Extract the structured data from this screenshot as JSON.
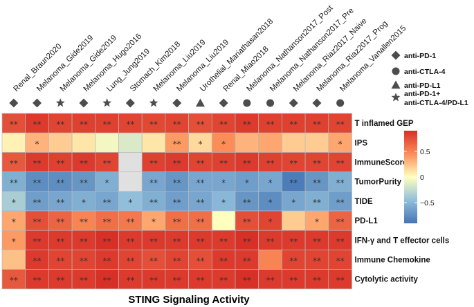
{
  "chart_data": {
    "type": "heatmap",
    "title": "STING Signaling Activity",
    "xlabel": "STING Signaling Activity",
    "columns": [
      "Renal_Braun2020",
      "Melanoma_Gide2019",
      "Melanoma_Gide2019",
      "Melanoma_Hugo2016",
      "Lung_Jung2019",
      "Stomach_Kim2018",
      "Melanoma_Liu2019",
      "Melanoma_Liu2019",
      "Urothelial_Mariathasan2018",
      "Renal_Miao2018",
      "Melanoma_Nathanson2017_Post",
      "Melanoma_Nathanson2017_Pre",
      "Melanoma_Riaz2017_Naive",
      "Melanoma_Riaz2017_Prog",
      "Melanoma_Vanallen2015"
    ],
    "column_treatment": [
      "diamond",
      "diamond",
      "star",
      "diamond",
      "star",
      "diamond",
      "star",
      "diamond",
      "triangle",
      "diamond",
      "circle",
      "circle",
      "diamond",
      "diamond",
      "circle"
    ],
    "rows": [
      "T inflamed GEP",
      "IPS",
      "ImmuneScore",
      "TumorPurity",
      "TIDE",
      "PD-L1",
      "IFN-γ and T effector cells",
      "Immune Chemokine",
      "Cytolytic activity"
    ],
    "values": [
      [
        0.75,
        0.85,
        0.8,
        0.82,
        0.82,
        0.8,
        0.78,
        0.8,
        0.75,
        0.8,
        0.85,
        0.82,
        0.82,
        0.82,
        0.8
      ],
      [
        0.05,
        0.3,
        0.2,
        0.1,
        -0.05,
        -0.15,
        0.1,
        0.4,
        0.15,
        0.45,
        0.3,
        0.35,
        0.2,
        0.2,
        0.35
      ],
      [
        0.7,
        0.85,
        0.82,
        0.85,
        0.8,
        null,
        0.82,
        0.85,
        0.8,
        0.82,
        0.85,
        0.82,
        0.8,
        0.8,
        0.8
      ],
      [
        -0.55,
        -0.75,
        -0.75,
        -0.7,
        -0.55,
        null,
        -0.6,
        -0.7,
        -0.6,
        -0.6,
        -0.65,
        -0.6,
        -0.85,
        -0.7,
        -0.55
      ],
      [
        -0.35,
        -0.65,
        -0.6,
        -0.55,
        -0.6,
        -0.45,
        -0.55,
        -0.65,
        -0.6,
        -0.5,
        -0.7,
        -0.75,
        -0.6,
        -0.55,
        -0.65
      ],
      [
        0.35,
        0.75,
        0.65,
        0.5,
        0.6,
        0.55,
        0.35,
        0.6,
        0.6,
        0.0,
        0.75,
        0.8,
        0.2,
        0.35,
        0.65
      ],
      [
        0.4,
        0.85,
        0.85,
        0.85,
        0.9,
        0.85,
        0.85,
        0.85,
        0.85,
        0.85,
        0.9,
        0.85,
        0.85,
        0.85,
        0.85
      ],
      [
        0.25,
        0.85,
        0.8,
        0.8,
        0.85,
        0.8,
        0.75,
        0.8,
        0.75,
        0.85,
        0.85,
        0.5,
        0.8,
        0.8,
        0.8
      ],
      [
        0.7,
        0.85,
        0.85,
        0.85,
        0.9,
        0.85,
        0.85,
        0.85,
        0.85,
        0.85,
        0.9,
        0.85,
        0.85,
        0.85,
        0.85
      ]
    ],
    "significance": [
      [
        "**",
        "**",
        "**",
        "**",
        "**",
        "**",
        "**",
        "**",
        "**",
        "**",
        "**",
        "**",
        "**",
        "**",
        "**"
      ],
      [
        "",
        "*",
        "",
        "",
        "",
        "",
        "",
        "**",
        "*",
        "*",
        "",
        "",
        "",
        "",
        "*"
      ],
      [
        "**",
        "**",
        "**",
        "**",
        "**",
        "",
        "**",
        "**",
        "**",
        "**",
        "**",
        "**",
        "**",
        "**",
        "**"
      ],
      [
        "**",
        "**",
        "**",
        "**",
        "*",
        "",
        "**",
        "**",
        "**",
        "*",
        "*",
        "*",
        "**",
        "**",
        "**"
      ],
      [
        "*",
        "**",
        "**",
        "*",
        "**",
        "*",
        "**",
        "**",
        "**",
        "*",
        "**",
        "*",
        "*",
        "**",
        "**"
      ],
      [
        "*",
        "**",
        "**",
        "**",
        "**",
        "**",
        "*",
        "**",
        "**",
        "",
        "**",
        "*",
        "",
        "*",
        "**"
      ],
      [
        "*",
        "**",
        "**",
        "**",
        "**",
        "**",
        "**",
        "**",
        "**",
        "**",
        "**",
        "**",
        "**",
        "**",
        "**"
      ],
      [
        "",
        "**",
        "**",
        "**",
        "**",
        "**",
        "**",
        "**",
        "**",
        "**",
        "**",
        "",
        "**",
        "**",
        "**"
      ],
      [
        "**",
        "**",
        "**",
        "**",
        "**",
        "**",
        "**",
        "**",
        "**",
        "**",
        "**",
        "**",
        "**",
        "**",
        "**"
      ]
    ],
    "color_scale": {
      "range": [
        -0.9,
        0.9
      ],
      "ticks": [
        -0.5,
        0,
        0.5
      ],
      "tick_labels": [
        "−0.5",
        "0",
        "0.5"
      ],
      "low_color": "#4575b4",
      "mid_color": "#ffffbf",
      "high_color": "#d73027",
      "missing_color": "#e0e0e0"
    },
    "legend": [
      {
        "shape": "diamond",
        "label": "anti-PD-1"
      },
      {
        "shape": "circle",
        "label": "anti-CTLA-4"
      },
      {
        "shape": "triangle",
        "label": "anti-PD-L1"
      },
      {
        "shape": "star",
        "label_lines": [
          "anti-PD-1+",
          "anti-CTLA-4/PD-L1"
        ]
      }
    ]
  }
}
